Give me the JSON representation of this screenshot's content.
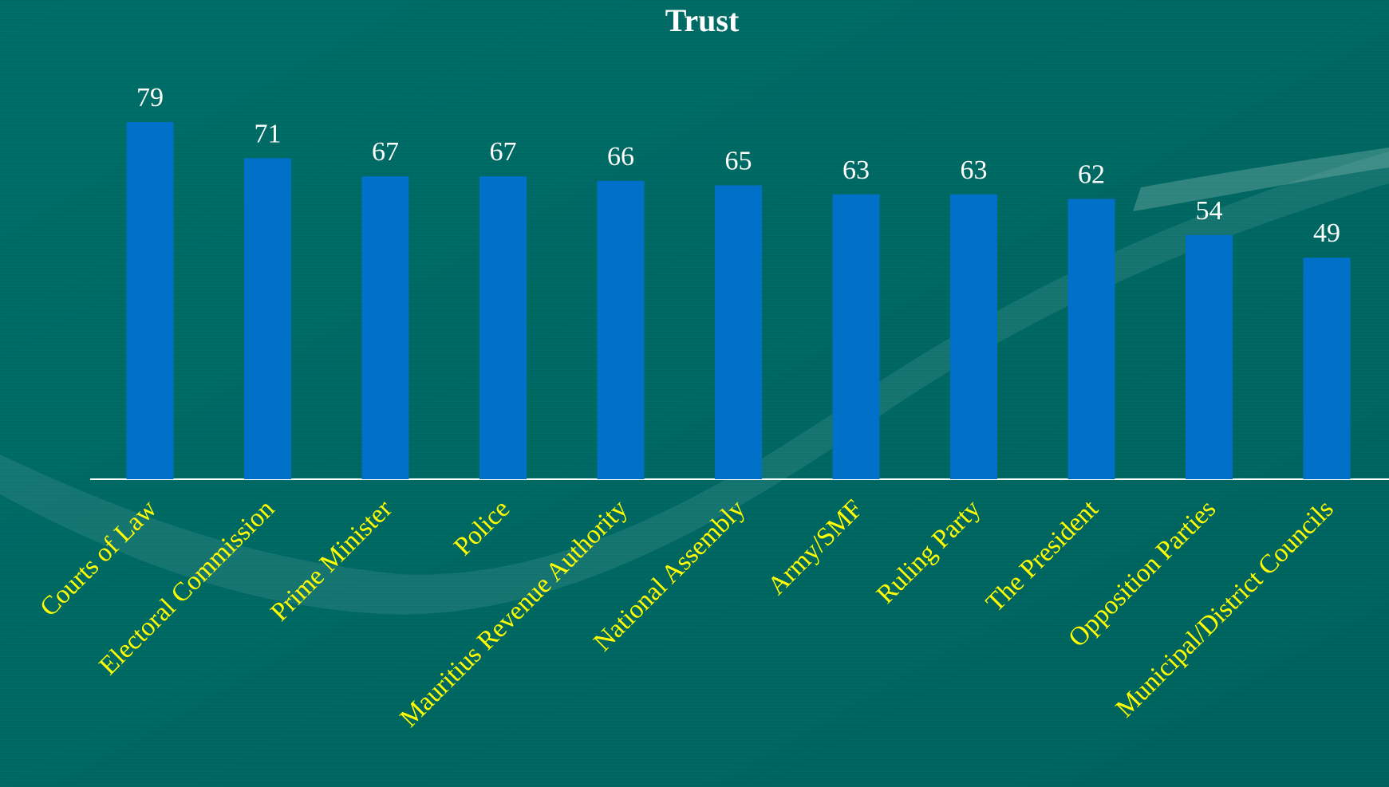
{
  "chart_data": {
    "type": "bar",
    "title": "Trust",
    "categories": [
      "Courts of Law",
      "Electoral Commission",
      "Prime Minister",
      "Police",
      "Mauritius Revenue Authority",
      "National Assembly",
      "Army/SMF",
      "Ruling Party",
      "The President",
      "Opposition Parties",
      "Municipal/District Councils"
    ],
    "values": [
      79,
      71,
      67,
      67,
      66,
      65,
      63,
      63,
      62,
      54,
      49
    ],
    "color": "#0070c8"
  }
}
